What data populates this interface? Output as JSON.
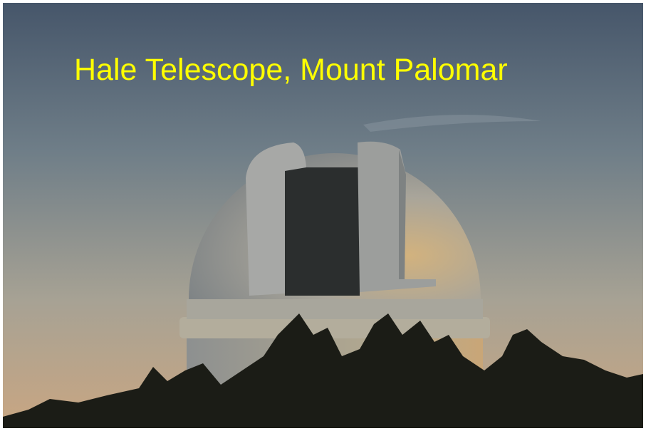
{
  "title": "Hale Telescope, Mount Palomar"
}
